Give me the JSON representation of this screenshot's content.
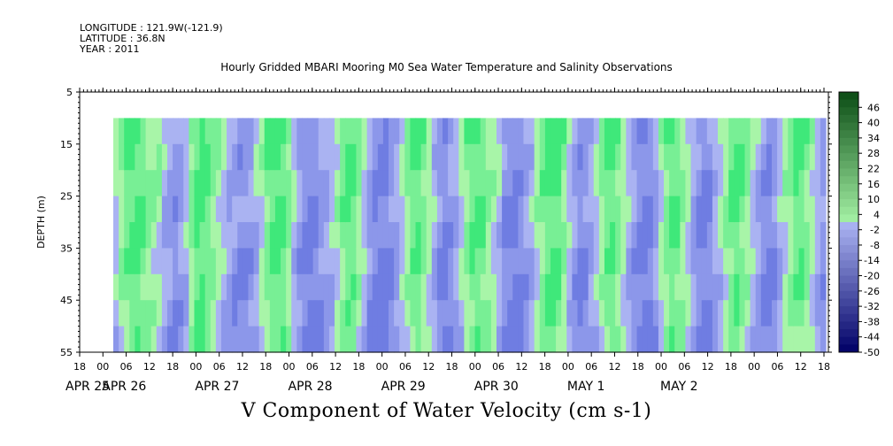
{
  "header": {
    "longitude": "LONGITUDE : 121.9W(-121.9)",
    "latitude": "LATITUDE : 36.8N",
    "year": "YEAR : 2011"
  },
  "chart_data": {
    "type": "heatmap",
    "title": "Hourly Gridded MBARI Mooring M0 Sea Water Temperature and Salinity Observations",
    "xlabel": "V Component of Water Velocity (cm s-1)",
    "ylabel": "DEPTH (m)",
    "y_ticks": [
      5,
      15,
      25,
      35,
      45,
      55
    ],
    "ylim": [
      55,
      5
    ],
    "data_depth_range": [
      10,
      55
    ],
    "x_hour_ticks": [
      "18",
      "00",
      "06",
      "12",
      "18",
      "00",
      "06",
      "12",
      "18",
      "00",
      "06",
      "12",
      "18",
      "00",
      "06",
      "12",
      "18",
      "00",
      "06",
      "12",
      "18",
      "00",
      "06",
      "12",
      "18",
      "00",
      "06",
      "12",
      "18",
      "00",
      "06",
      "12",
      "18"
    ],
    "x_date_labels": [
      "APR 25",
      "APR 26",
      "APR 27",
      "APR 28",
      "APR 29",
      "APR 30",
      "MAY  1",
      "MAY  2"
    ],
    "colorbar_labels": [
      "46",
      "40",
      "34",
      "28",
      "22",
      "16",
      "10",
      "4",
      "-2",
      "-8",
      "-14",
      "-20",
      "-26",
      "-32",
      "-38",
      "-44",
      "-50"
    ],
    "colorbar_range": [
      -50,
      52
    ],
    "colorbar_step": 3,
    "colors": {
      "positive_light": "#a8f5a8",
      "positive_mid": "#3fe87a",
      "negative_light": "#aab3f2",
      "negative_mid": "#8c97ea",
      "deep_positive": "#0a4a14",
      "deep_negative": "#000060"
    },
    "time_columns_v_cm_s": [
      -2,
      4,
      10,
      12,
      13,
      10,
      6,
      4,
      2,
      -4,
      -8,
      -10,
      -8,
      -4,
      6,
      12,
      14,
      10,
      6,
      2,
      -2,
      -6,
      -8,
      -10,
      -10,
      -8,
      -4,
      2,
      8,
      12,
      14,
      12,
      6,
      -2,
      -8,
      -12,
      -14,
      -12,
      -8,
      -6,
      -4,
      2,
      8,
      12,
      10,
      4,
      -2,
      -8,
      -12,
      -14,
      -14,
      -10,
      -6,
      -2,
      4,
      10,
      12,
      8,
      2,
      -4,
      -10,
      -12,
      -10,
      -6,
      0,
      6,
      10,
      12,
      10,
      6,
      2,
      -4,
      -10,
      -12,
      -14,
      -12,
      -8,
      -4,
      2,
      8,
      12,
      14,
      12,
      6,
      -2,
      -8,
      -12,
      -10,
      -6,
      -2,
      4,
      10,
      12,
      8,
      2,
      -4,
      -8,
      -12,
      -14,
      -12,
      -6,
      2,
      8,
      12,
      10,
      6,
      0,
      -6,
      -10,
      -12,
      -10,
      -6,
      -2,
      4,
      10,
      12,
      8,
      4,
      -2,
      -6,
      -10,
      -12,
      -10,
      -4,
      2,
      6,
      10,
      12,
      8,
      2,
      -4,
      -8
    ]
  }
}
